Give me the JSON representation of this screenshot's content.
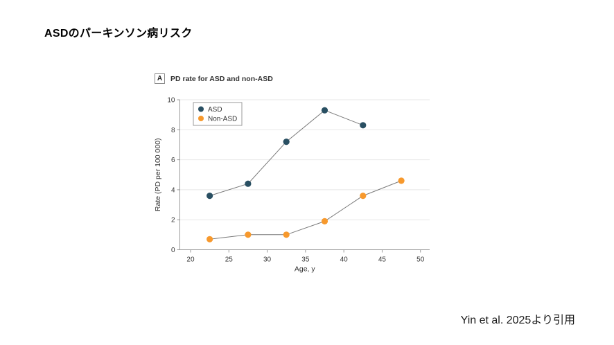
{
  "slide": {
    "title": "ASDのパーキンソン病リスク",
    "citation": "Yin et al. 2025より引用"
  },
  "chart": {
    "panel_label": "A",
    "panel_title": "PD rate for ASD and non-ASD"
  },
  "chart_data": {
    "type": "line",
    "title": "PD rate for ASD and non-ASD",
    "xlabel": "Age, y",
    "ylabel": "Rate (PD per 100 000)",
    "xlim": [
      18.6,
      51.2
    ],
    "ylim": [
      0,
      10
    ],
    "xticks": [
      20,
      25,
      30,
      35,
      40,
      45,
      50
    ],
    "yticks": [
      0,
      2,
      4,
      6,
      8,
      10
    ],
    "grid": "horizontal",
    "legend_position": "upper-left",
    "series": [
      {
        "name": "ASD",
        "color": "#294f62",
        "x": [
          22.5,
          27.5,
          32.5,
          37.5,
          42.5
        ],
        "values": [
          3.6,
          4.4,
          7.2,
          9.3,
          8.3
        ]
      },
      {
        "name": "Non-ASD",
        "color": "#f7992d",
        "x": [
          22.5,
          27.5,
          32.5,
          37.5,
          42.5,
          47.5
        ],
        "values": [
          0.7,
          1.0,
          1.0,
          1.9,
          3.6,
          4.6
        ]
      }
    ],
    "colors": {
      "grid": "#e7e7e7",
      "axis": "#999999",
      "connector_line": "#7a7a7a",
      "text": "#333333",
      "legend_border": "#9a9a9a"
    }
  }
}
